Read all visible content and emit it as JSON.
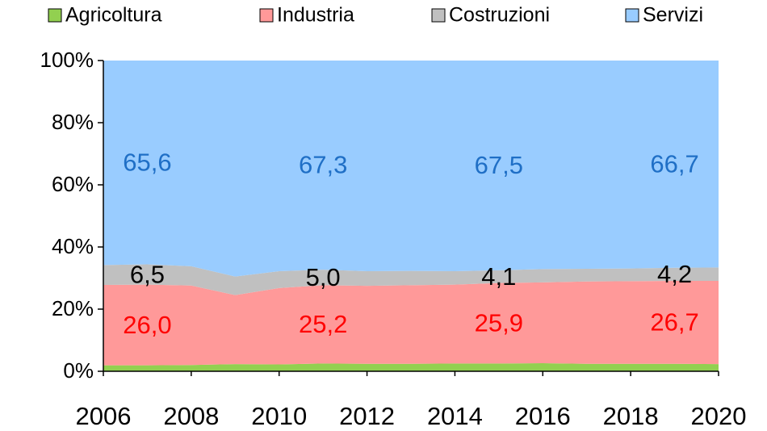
{
  "chart_data": {
    "type": "stacked_area",
    "x": [
      2006,
      2007,
      2008,
      2009,
      2010,
      2011,
      2012,
      2013,
      2014,
      2015,
      2016,
      2017,
      2018,
      2019,
      2020
    ],
    "xlim": [
      2006,
      2020
    ],
    "xticks": [
      2006,
      2008,
      2010,
      2012,
      2014,
      2016,
      2018,
      2020
    ],
    "ylim": [
      0,
      100
    ],
    "yticks": [
      {
        "value": 0,
        "label": "0%"
      },
      {
        "value": 20,
        "label": "20%"
      },
      {
        "value": 40,
        "label": "40%"
      },
      {
        "value": 60,
        "label": "60%"
      },
      {
        "value": 80,
        "label": "80%"
      },
      {
        "value": 100,
        "label": "100%"
      }
    ],
    "legend": "top",
    "series": [
      {
        "name": "Agricoltura",
        "color": "#92d050",
        "values": [
          1.9,
          1.9,
          2.0,
          2.3,
          2.2,
          2.5,
          2.4,
          2.4,
          2.5,
          2.5,
          2.6,
          2.4,
          2.4,
          2.4,
          2.3
        ]
      },
      {
        "name": "Industria",
        "color": "#ff9999",
        "label_color": "#ff0000",
        "values": [
          25.9,
          26.0,
          25.6,
          22.2,
          24.6,
          25.2,
          25.1,
          25.3,
          25.4,
          25.9,
          26.0,
          26.5,
          26.6,
          26.7,
          26.8
        ],
        "value_labels": [
          null,
          "26,0",
          null,
          null,
          null,
          "25,2",
          null,
          null,
          null,
          "25,9",
          null,
          null,
          null,
          "26,7",
          null
        ]
      },
      {
        "name": "Costruzioni",
        "color": "#c0c0c0",
        "label_color": "#000000",
        "values": [
          6.4,
          6.5,
          6.2,
          6.0,
          5.4,
          5.0,
          4.7,
          4.6,
          4.3,
          4.1,
          4.3,
          4.1,
          4.1,
          4.2,
          4.3
        ],
        "value_labels": [
          null,
          "6,5",
          null,
          null,
          null,
          "5,0",
          null,
          null,
          null,
          "4,1",
          null,
          null,
          null,
          "4,2",
          null
        ]
      },
      {
        "name": "Servizi",
        "color": "#99ccff",
        "label_color": "#1f6fc6",
        "values": [
          65.8,
          65.6,
          66.2,
          69.5,
          67.8,
          67.3,
          67.8,
          67.7,
          67.8,
          67.5,
          67.1,
          67.0,
          66.9,
          66.7,
          66.6
        ],
        "value_labels": [
          null,
          "65,6",
          null,
          null,
          null,
          "67,3",
          null,
          null,
          null,
          "67,5",
          null,
          null,
          null,
          "66,7",
          null
        ]
      }
    ]
  }
}
